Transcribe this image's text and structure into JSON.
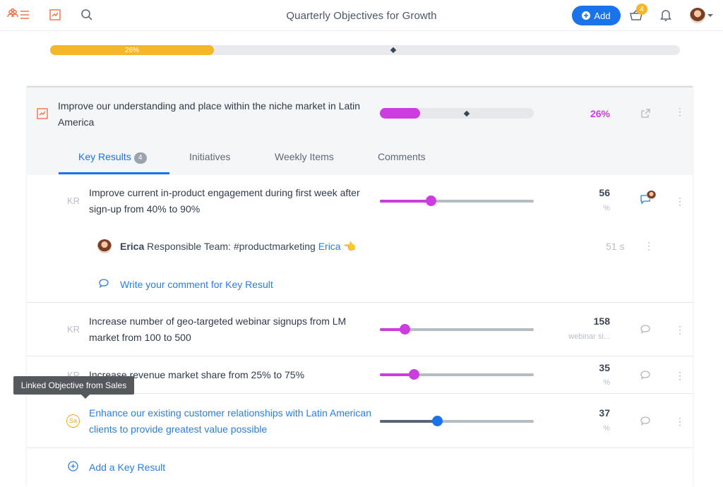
{
  "header": {
    "title": "Quarterly Objectives for Growth",
    "add_label": "Add",
    "cart_badge": "4",
    "icons": [
      "team-list-icon",
      "chart-icon",
      "search-icon",
      "basket-icon",
      "bell-icon",
      "avatar",
      "chevron-down-icon"
    ]
  },
  "overall": {
    "progress_label": "26%",
    "progress": 0.26,
    "bar_color": "#f5b72a"
  },
  "objective": {
    "title": "Improve our understanding and place within the niche market in Latin America",
    "progress_label": "26%",
    "progress": 0.26,
    "accent": "#cc3de0"
  },
  "tabs": [
    {
      "label": "Key Results",
      "count": "4"
    },
    {
      "label": "Initiatives"
    },
    {
      "label": "Weekly Items"
    },
    {
      "label": "Comments"
    }
  ],
  "key_results": [
    {
      "tag": "KR",
      "text": "Improve current in-product engagement during first week after sign-up from 40% to 90%",
      "value": "56",
      "unit": "%",
      "progress": 0.33
    },
    {
      "tag": "KR",
      "text": "Increase number of geo-targeted webinar signups from LM market from 100 to 500",
      "value": "158",
      "unit": "webinar si...",
      "progress": 0.16
    },
    {
      "tag": "KR",
      "text": "Increase revenue market share from 25% to 75%",
      "value": "35",
      "unit": "%",
      "progress": 0.22
    },
    {
      "tag": "Sa",
      "text": "Enhance our existing customer relationships with Latin American clients to provide greatest value possible",
      "value": "37",
      "unit": "%",
      "progress": 0.37
    }
  ],
  "comment": {
    "author": "Erica",
    "body": "Responsible Team: #productmarketing",
    "mention": "Erica",
    "emoji": "👈",
    "time": "51 s"
  },
  "write_comment": "Write your comment for Key Result",
  "tooltip": "Linked Objective from Sales",
  "add_key_result": "Add a Key Result"
}
